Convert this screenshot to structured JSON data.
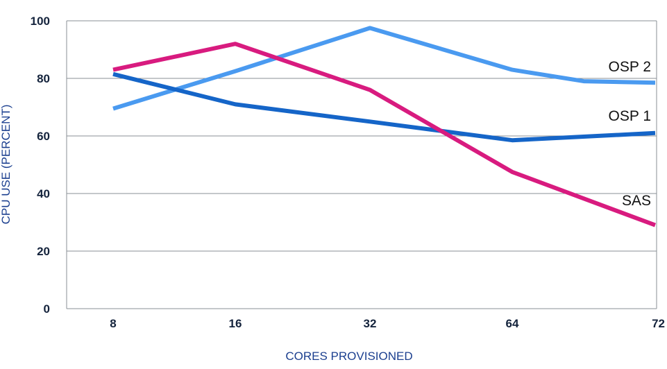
{
  "chart_data": {
    "type": "line",
    "categories": [
      "8",
      "16",
      "32",
      "64",
      "72"
    ],
    "xlabel": "CORES PROVISIONED",
    "ylabel": "CPU USE (PERCENT)",
    "ylim": [
      0,
      100
    ],
    "yticks": [
      0,
      20,
      40,
      60,
      80,
      100
    ],
    "grid": true,
    "series": [
      {
        "name": "OSP 2",
        "color": "#4a9af0",
        "points": [
          [
            8,
            69.5
          ],
          [
            16,
            82.5
          ],
          [
            32,
            97.5
          ],
          [
            64,
            83
          ],
          [
            68,
            79
          ],
          [
            72,
            78.5
          ]
        ]
      },
      {
        "name": "OSP 1",
        "color": "#1565c8",
        "points": [
          [
            8,
            81.5
          ],
          [
            16,
            71
          ],
          [
            32,
            65
          ],
          [
            64,
            58.5
          ],
          [
            72,
            61
          ]
        ]
      },
      {
        "name": "SAS",
        "color": "#d81b7f",
        "points": [
          [
            8,
            83
          ],
          [
            16,
            92
          ],
          [
            32,
            76
          ],
          [
            64,
            47.5
          ],
          [
            72,
            29
          ]
        ]
      }
    ]
  }
}
